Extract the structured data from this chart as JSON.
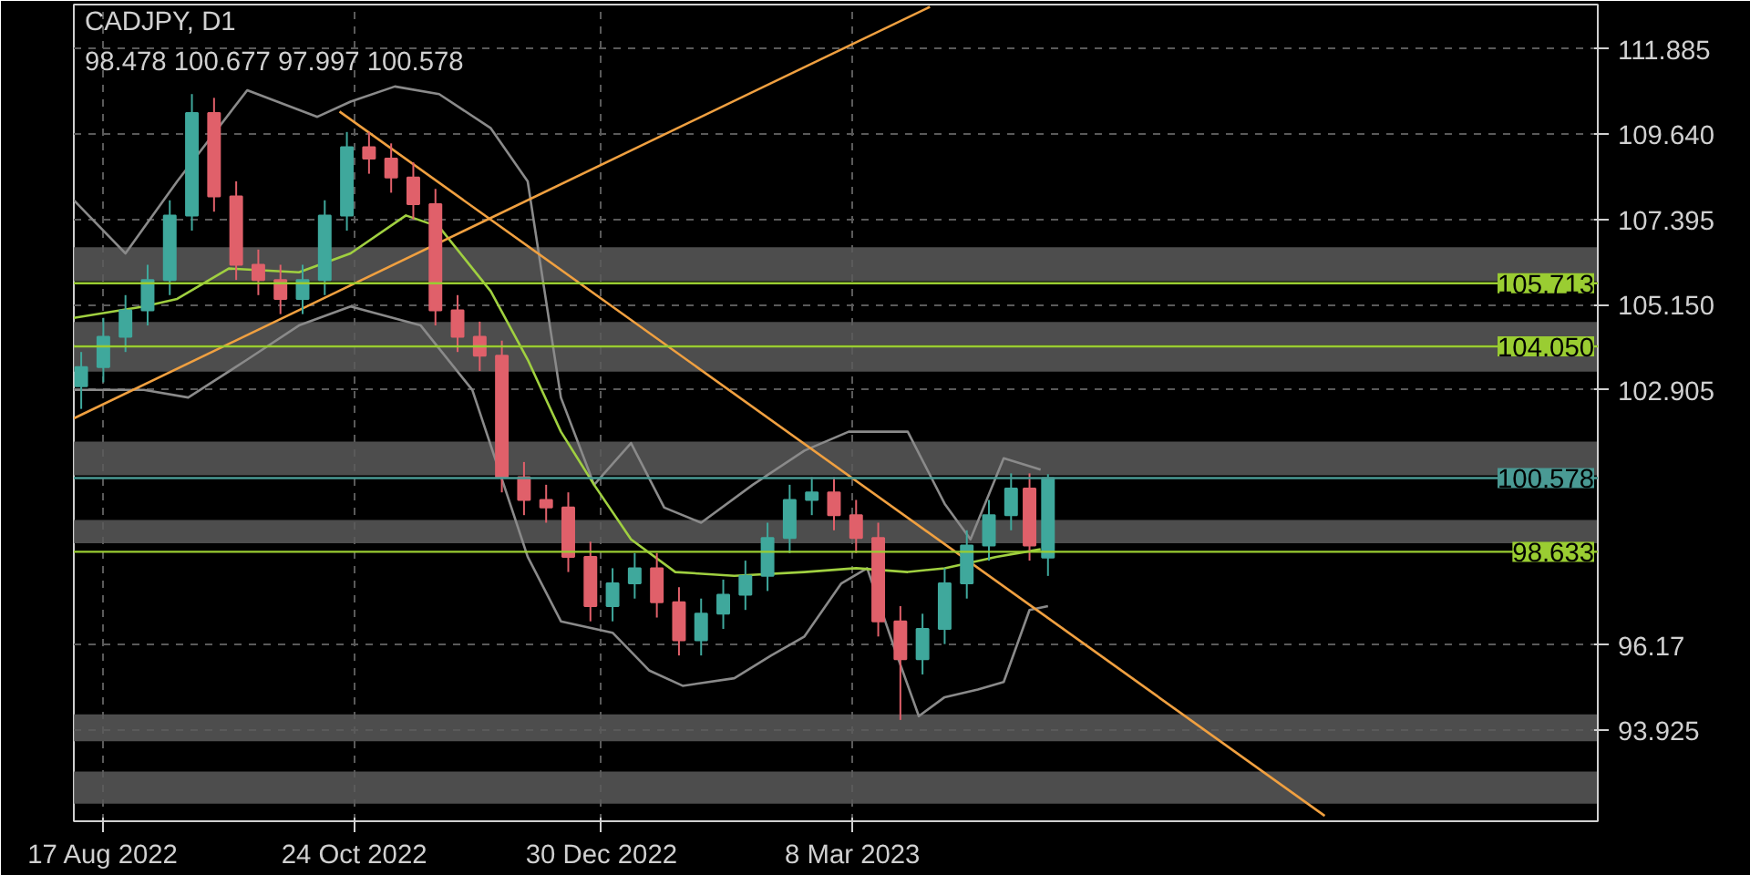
{
  "chart_data": {
    "type": "candlestick",
    "title": "CADJPY, D1",
    "annotations": [
      "98.478 100.677 97.997 100.578"
    ],
    "x": [
      "2022-08-11",
      "2022-08-17",
      "2022-08-23",
      "2022-08-29",
      "2022-09-04",
      "2022-09-10",
      "2022-09-16",
      "2022-09-22",
      "2022-09-28",
      "2022-10-04",
      "2022-10-10",
      "2022-10-16",
      "2022-10-22",
      "2022-10-28",
      "2022-11-03",
      "2022-11-09",
      "2022-11-15",
      "2022-11-21",
      "2022-11-27",
      "2022-12-03",
      "2022-12-09",
      "2022-12-15",
      "2022-12-21",
      "2022-12-27",
      "2023-01-02",
      "2023-01-08",
      "2023-01-14",
      "2023-01-20",
      "2023-01-26",
      "2023-02-01",
      "2023-02-07",
      "2023-02-13",
      "2023-02-19",
      "2023-02-25",
      "2023-03-03",
      "2023-03-09",
      "2023-03-15",
      "2023-03-21",
      "2023-03-27",
      "2023-04-02",
      "2023-04-08",
      "2023-04-14",
      "2023-04-20",
      "2023-04-25",
      "2023-04-30"
    ],
    "ohlc": [
      [
        103.0,
        103.9,
        102.4,
        103.5
      ],
      [
        103.5,
        104.8,
        103.1,
        104.3
      ],
      [
        104.3,
        105.4,
        103.9,
        105.0
      ],
      [
        105.0,
        106.2,
        104.6,
        105.8
      ],
      [
        105.8,
        107.9,
        105.4,
        107.5
      ],
      [
        107.5,
        110.7,
        107.1,
        110.2
      ],
      [
        110.2,
        110.6,
        107.6,
        108.0
      ],
      [
        108.0,
        108.4,
        105.8,
        106.2
      ],
      [
        106.2,
        106.6,
        105.4,
        105.8
      ],
      [
        105.8,
        106.2,
        104.9,
        105.3
      ],
      [
        105.3,
        106.2,
        104.9,
        105.8
      ],
      [
        105.8,
        107.9,
        105.4,
        107.5
      ],
      [
        107.5,
        109.7,
        107.1,
        109.3
      ],
      [
        109.3,
        109.7,
        108.6,
        109.0
      ],
      [
        109.0,
        109.4,
        108.1,
        108.5
      ],
      [
        108.5,
        108.9,
        107.4,
        107.8
      ],
      [
        107.8,
        108.2,
        104.6,
        105.0
      ],
      [
        105.0,
        105.4,
        103.9,
        104.3
      ],
      [
        104.3,
        104.7,
        103.4,
        103.8
      ],
      [
        103.8,
        104.2,
        100.2,
        100.6
      ],
      [
        100.6,
        101.0,
        99.6,
        100.0
      ],
      [
        100.0,
        100.4,
        99.4,
        99.8
      ],
      [
        99.8,
        100.2,
        98.1,
        98.5
      ],
      [
        98.5,
        98.9,
        96.8,
        97.2
      ],
      [
        97.2,
        98.2,
        96.8,
        97.8
      ],
      [
        97.8,
        98.6,
        97.4,
        98.2
      ],
      [
        98.2,
        98.6,
        96.9,
        97.3
      ],
      [
        97.3,
        97.7,
        95.9,
        96.3
      ],
      [
        96.3,
        97.4,
        95.9,
        97.0
      ],
      [
        97.0,
        97.9,
        96.6,
        97.5
      ],
      [
        97.5,
        98.4,
        97.1,
        98.0
      ],
      [
        98.0,
        99.4,
        97.6,
        99.0
      ],
      [
        99.0,
        100.4,
        98.6,
        100.0
      ],
      [
        100.0,
        100.6,
        99.6,
        100.2
      ],
      [
        100.2,
        100.6,
        99.2,
        99.6
      ],
      [
        99.6,
        100.0,
        98.6,
        99.0
      ],
      [
        99.0,
        99.4,
        96.4,
        96.8
      ],
      [
        96.8,
        97.2,
        94.2,
        95.8
      ],
      [
        95.8,
        97.0,
        95.4,
        96.6
      ],
      [
        96.6,
        98.2,
        96.2,
        97.8
      ],
      [
        97.8,
        99.2,
        97.4,
        98.8
      ],
      [
        98.8,
        100.0,
        98.4,
        99.6
      ],
      [
        99.6,
        100.7,
        99.2,
        100.3
      ],
      [
        100.3,
        100.7,
        98.4,
        98.8
      ],
      [
        98.478,
        100.677,
        97.997,
        100.578
      ]
    ],
    "colors": [
      "#3fa89c",
      "#3fa89c",
      "#3fa89c",
      "#3fa89c",
      "#3fa89c",
      "#3fa89c",
      "#e0606a",
      "#e0606a",
      "#e0606a",
      "#e0606a",
      "#3fa89c",
      "#3fa89c",
      "#3fa89c",
      "#e0606a",
      "#e0606a",
      "#e0606a",
      "#e0606a",
      "#e0606a",
      "#e0606a",
      "#e0606a",
      "#e0606a",
      "#e0606a",
      "#e0606a",
      "#e0606a",
      "#3fa89c",
      "#3fa89c",
      "#e0606a",
      "#e0606a",
      "#3fa89c",
      "#3fa89c",
      "#3fa89c",
      "#3fa89c",
      "#3fa89c",
      "#3fa89c",
      "#e0606a",
      "#e0606a",
      "#e0606a",
      "#e0606a",
      "#3fa89c",
      "#3fa89c",
      "#3fa89c",
      "#3fa89c",
      "#3fa89c",
      "#e0606a",
      "#3fa89c"
    ],
    "series": [
      {
        "type": "line",
        "color": "#8a8a8a",
        "x": [
          "2022-08-09",
          "2022-08-23",
          "2022-09-06",
          "2022-09-25",
          "2022-10-14",
          "2022-10-23",
          "2022-11-04",
          "2022-11-16",
          "2022-11-30",
          "2022-12-10",
          "2022-12-19",
          "2022-12-28",
          "2023-01-07",
          "2023-01-16",
          "2023-01-26",
          "2023-02-09",
          "2023-02-23",
          "2023-03-07",
          "2023-03-23",
          "2023-04-02",
          "2023-04-09",
          "2023-04-18",
          "2023-04-28"
        ],
        "values": [
          107.9,
          106.5,
          108.4,
          110.8,
          110.1,
          110.5,
          110.9,
          110.7,
          109.8,
          108.4,
          102.7,
          100.4,
          101.5,
          99.8,
          99.4,
          100.4,
          101.3,
          101.8,
          101.8,
          99.9,
          98.96,
          101.1,
          100.8
        ]
      },
      {
        "type": "line",
        "color": "#8a8a8a",
        "x": [
          "2022-08-09",
          "2022-08-28",
          "2022-09-09",
          "2022-09-25",
          "2022-10-09",
          "2022-10-23",
          "2022-11-11",
          "2022-11-25",
          "2022-12-10",
          "2022-12-19",
          "2023-01-02",
          "2023-01-12",
          "2023-01-21",
          "2023-02-04",
          "2023-02-14",
          "2023-02-23",
          "2023-03-05",
          "2023-03-12",
          "2023-03-19",
          "2023-03-26",
          "2023-04-02",
          "2023-04-11",
          "2023-04-18",
          "2023-04-25",
          "2023-04-30"
        ],
        "values": [
          102.9,
          102.9,
          102.7,
          103.7,
          104.6,
          105.1,
          104.6,
          102.9,
          98.5,
          96.8,
          96.5,
          95.5,
          95.1,
          95.3,
          95.9,
          96.4,
          97.8,
          98.2,
          96.2,
          94.3,
          94.8,
          95.0,
          95.2,
          97.1,
          97.2
        ]
      },
      {
        "type": "line",
        "color": "#a0d040",
        "x": [
          "2022-08-09",
          "2022-08-28",
          "2022-09-06",
          "2022-09-20",
          "2022-10-09",
          "2022-10-23",
          "2022-11-07",
          "2022-11-16",
          "2022-11-30",
          "2022-12-10",
          "2022-12-19",
          "2022-12-28",
          "2023-01-07",
          "2023-01-19",
          "2023-02-04",
          "2023-02-23",
          "2023-03-09",
          "2023-03-23",
          "2023-04-02",
          "2023-04-16",
          "2023-04-28"
        ],
        "values": [
          104.8,
          105.1,
          105.3,
          106.1,
          106.0,
          106.5,
          107.5,
          107.2,
          105.5,
          103.7,
          101.8,
          100.4,
          98.96,
          98.1,
          98.0,
          98.1,
          98.2,
          98.1,
          98.2,
          98.5,
          98.7
        ]
      },
      {
        "type": "line",
        "color": "#f0a040",
        "x": [
          "2022-08-09",
          "2023-03-29"
        ],
        "values": [
          102.15,
          113.0
        ]
      },
      {
        "type": "line",
        "color": "#f0a040",
        "x": [
          "2022-10-20",
          "2023-07-14"
        ],
        "values": [
          110.24,
          91.67
        ]
      }
    ],
    "bands": [
      {
        "axis": "y",
        "from": 105.77,
        "to": 106.66,
        "color": "#5a5a5a"
      },
      {
        "axis": "y",
        "from": 104.08,
        "to": 104.69,
        "color": "#5a5a5a"
      },
      {
        "axis": "y",
        "from": 103.38,
        "to": 104.03,
        "color": "#5a5a5a"
      },
      {
        "axis": "y",
        "from": 100.65,
        "to": 101.54,
        "color": "#5a5a5a"
      },
      {
        "axis": "y",
        "from": 98.86,
        "to": 99.47,
        "color": "#5a5a5a"
      },
      {
        "axis": "y",
        "from": 93.64,
        "to": 94.35,
        "color": "#5a5a5a"
      },
      {
        "axis": "y",
        "from": 91.99,
        "to": 92.84,
        "color": "#5a5a5a"
      }
    ],
    "ref_lines": [
      {
        "axis": "y",
        "value": 105.713,
        "label": "105.713",
        "color": "#9acd32"
      },
      {
        "axis": "y",
        "value": 104.05,
        "label": "104.050",
        "color": "#9acd32"
      },
      {
        "axis": "y",
        "value": 98.633,
        "label": "98.633",
        "color": "#9acd32"
      },
      {
        "axis": "y",
        "value": 100.578,
        "label": "100.578",
        "color": "#4a9a94"
      }
    ],
    "xlim": [
      "2022-08-09",
      "2023-09-26"
    ],
    "xticks": [
      {
        "value": "2022-08-17",
        "label": "17 Aug 2022"
      },
      {
        "value": "2022-10-24",
        "label": "24 Oct 2022"
      },
      {
        "value": "2022-12-30",
        "label": "30 Dec 2022"
      },
      {
        "value": "2023-03-08",
        "label": "8 Mar 2023"
      }
    ],
    "ylim": [
      91.53,
      113.06
    ],
    "yticks": [
      111.885,
      {
        "value": 109.64,
        "label": "109.640"
      },
      107.395,
      {
        "value": 105.15,
        "label": "105.150"
      },
      102.905,
      96.17,
      93.925
    ],
    "grid": true
  }
}
